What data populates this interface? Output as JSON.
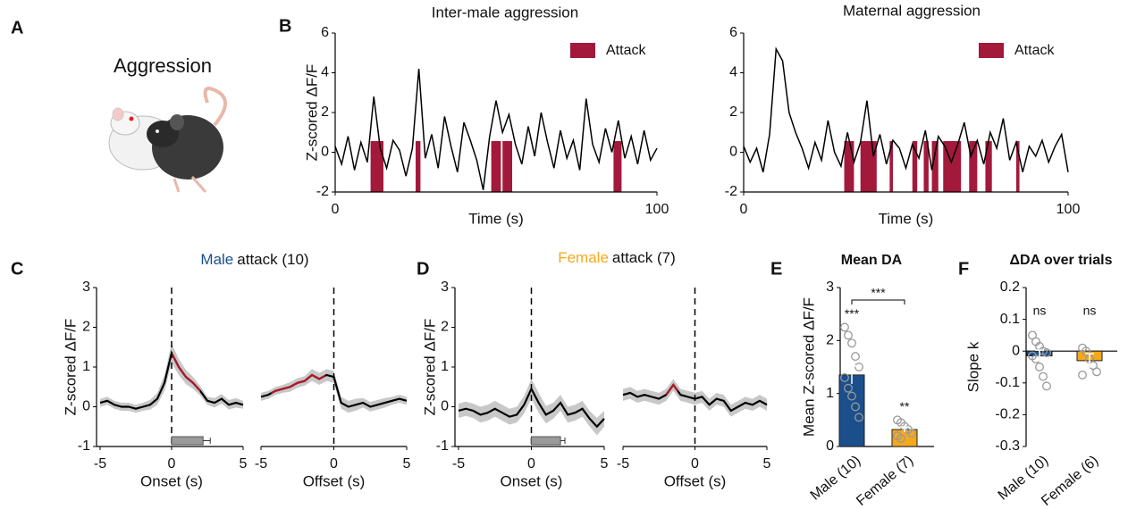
{
  "figure": {
    "panel_letters": [
      "A",
      "B",
      "C",
      "D",
      "E",
      "F"
    ],
    "illustration_label": "Aggression"
  },
  "chart_data": [
    {
      "type": "line",
      "title": "Inter-male aggression",
      "ylabel": "Z-scored ΔF/F",
      "xlabel": "Time (s)",
      "xlim": [
        0,
        100
      ],
      "xticks": [
        0,
        100
      ],
      "ylim": [
        -2,
        6
      ],
      "yticks": [
        -2,
        0,
        2,
        4,
        6
      ],
      "color": "#000000",
      "x": [
        0,
        2,
        4,
        6,
        8,
        10,
        12,
        14,
        16,
        18,
        20,
        22,
        24,
        26,
        28,
        30,
        32,
        34,
        36,
        38,
        40,
        42,
        44,
        46,
        48,
        50,
        52,
        54,
        56,
        58,
        60,
        62,
        64,
        66,
        68,
        70,
        72,
        74,
        76,
        78,
        80,
        82,
        84,
        86,
        88,
        90,
        92,
        94,
        96,
        98,
        100
      ],
      "values": [
        0.3,
        -0.6,
        0.8,
        -0.9,
        0.5,
        -0.5,
        2.8,
        0.2,
        -0.8,
        0.6,
        0.1,
        -1.2,
        0.2,
        4.2,
        -0.3,
        0.9,
        -0.8,
        1.8,
        0.3,
        -1.0,
        1.5,
        0.6,
        -0.4,
        -1.9,
        0.8,
        2.6,
        1.0,
        1.9,
        0.4,
        -0.6,
        1.3,
        -0.2,
        2.0,
        0.5,
        -0.8,
        1.1,
        -0.3,
        0.6,
        -0.9,
        2.7,
        0.4,
        -0.5,
        1.2,
        0.0,
        1.6,
        -0.3,
        0.8,
        -0.6,
        1.1,
        -0.4,
        0.2
      ],
      "attacks": {
        "name": "Attack",
        "color": "#a3193b",
        "intervals": [
          [
            11,
            15
          ],
          [
            25,
            26.5
          ],
          [
            48.5,
            51.5
          ],
          [
            52,
            55
          ],
          [
            86.5,
            89
          ]
        ]
      }
    },
    {
      "type": "line",
      "title": "Maternal aggression",
      "xlabel": "Time (s)",
      "xlim": [
        0,
        100
      ],
      "xticks": [
        0,
        100
      ],
      "ylim": [
        -2,
        6
      ],
      "yticks": [
        -2,
        0,
        2,
        4,
        6
      ],
      "color": "#000000",
      "x": [
        0,
        2,
        4,
        6,
        8,
        10,
        12,
        14,
        16,
        18,
        20,
        22,
        24,
        26,
        28,
        30,
        32,
        34,
        36,
        38,
        40,
        42,
        44,
        46,
        48,
        50,
        52,
        54,
        56,
        58,
        60,
        62,
        64,
        66,
        68,
        70,
        72,
        74,
        76,
        78,
        80,
        82,
        84,
        86,
        88,
        90,
        92,
        94,
        96,
        98,
        100
      ],
      "values": [
        0.3,
        -0.5,
        0.2,
        -1.0,
        0.9,
        5.2,
        4.6,
        2.0,
        1.0,
        0.2,
        -0.8,
        0.5,
        -0.4,
        1.6,
        0.0,
        -0.7,
        1.0,
        -0.5,
        0.5,
        2.6,
        -0.2,
        0.9,
        -0.6,
        0.6,
        0.2,
        -0.8,
        0.4,
        -0.3,
        1.1,
        -0.9,
        0.8,
        0.3,
        -0.5,
        0.4,
        1.5,
        -0.2,
        0.6,
        -0.6,
        1.0,
        0.2,
        1.7,
        -0.4,
        0.5,
        -1.0,
        0.3,
        -0.2,
        0.6,
        -0.5,
        0.3,
        0.9,
        -1.0
      ],
      "attacks": {
        "name": "Attack",
        "color": "#a3193b",
        "intervals": [
          [
            31,
            34
          ],
          [
            36,
            41
          ],
          [
            45,
            46
          ],
          [
            52,
            53.5
          ],
          [
            55.5,
            57
          ],
          [
            58,
            60
          ],
          [
            61.5,
            67
          ],
          [
            69.5,
            72
          ],
          [
            74.5,
            76.5
          ],
          [
            84,
            85
          ]
        ]
      }
    },
    {
      "type": "line",
      "title_parts": [
        {
          "text": "Male",
          "color": "#1a4f8c"
        },
        {
          "text": "attack (10)"
        }
      ],
      "ylabel": "Z-scored ΔF/F",
      "xlabel": "Onset (s)",
      "xlim": [
        -5,
        5
      ],
      "xticks": [
        -5,
        0,
        5
      ],
      "ylim": [
        -1,
        3
      ],
      "yticks": [
        -1,
        0,
        1,
        2,
        3
      ],
      "color": "#000000",
      "highlight_color": "#b0182a",
      "highlight": [
        0,
        2
      ],
      "x": [
        -5,
        -4.5,
        -4,
        -3.5,
        -3,
        -2.5,
        -2,
        -1.5,
        -1,
        -0.5,
        0,
        0.5,
        1,
        1.5,
        2,
        2.5,
        3,
        3.5,
        4,
        4.5,
        5
      ],
      "values": [
        0.1,
        0.15,
        0.05,
        0.0,
        0.0,
        -0.05,
        0.0,
        0.05,
        0.2,
        0.6,
        1.35,
        1.0,
        0.75,
        0.6,
        0.4,
        0.15,
        0.1,
        0.2,
        0.05,
        0.1,
        0.05
      ],
      "sem": [
        0.1,
        0.1,
        0.1,
        0.1,
        0.1,
        0.1,
        0.1,
        0.12,
        0.15,
        0.2,
        0.25,
        0.2,
        0.18,
        0.15,
        0.12,
        0.1,
        0.12,
        0.12,
        0.12,
        0.12,
        0.1
      ],
      "duration": {
        "value": 2.2,
        "error": 0.5
      }
    },
    {
      "type": "line",
      "xlabel": "Offset (s)",
      "xlim": [
        -5,
        5
      ],
      "xticks": [
        -5,
        0,
        5
      ],
      "ylim": [
        -1,
        3
      ],
      "color": "#000000",
      "highlight_color": "#b0182a",
      "highlight": [
        -4.3,
        -0.6
      ],
      "x": [
        -5,
        -4.5,
        -4,
        -3.5,
        -3,
        -2.5,
        -2,
        -1.5,
        -1,
        -0.5,
        0,
        0.5,
        1,
        1.5,
        2,
        2.5,
        3,
        3.5,
        4,
        4.5,
        5
      ],
      "values": [
        0.25,
        0.3,
        0.4,
        0.45,
        0.5,
        0.6,
        0.65,
        0.8,
        0.7,
        0.8,
        0.75,
        0.1,
        0.0,
        0.05,
        0.1,
        0.0,
        0.05,
        0.1,
        0.15,
        0.2,
        0.15
      ],
      "sem": [
        0.1,
        0.1,
        0.1,
        0.1,
        0.12,
        0.12,
        0.12,
        0.15,
        0.15,
        0.15,
        0.15,
        0.15,
        0.15,
        0.15,
        0.12,
        0.12,
        0.12,
        0.12,
        0.1,
        0.1,
        0.1
      ]
    },
    {
      "type": "line",
      "title_parts": [
        {
          "text": "Female",
          "color": "#f5a81c"
        },
        {
          "text": "attack (7)"
        }
      ],
      "ylabel": "Z-scored ΔF/F",
      "xlabel": "Onset (s)",
      "xlim": [
        -5,
        5
      ],
      "xticks": [
        -5,
        0,
        5
      ],
      "ylim": [
        -1,
        3
      ],
      "yticks": [
        -1,
        0,
        1,
        2,
        3
      ],
      "color": "#000000",
      "x": [
        -5,
        -4.5,
        -4,
        -3.5,
        -3,
        -2.5,
        -2,
        -1.5,
        -1,
        -0.5,
        0,
        0.5,
        1,
        1.5,
        2,
        2.5,
        3,
        3.5,
        4,
        4.5,
        5
      ],
      "values": [
        -0.1,
        -0.05,
        -0.1,
        -0.2,
        -0.15,
        -0.05,
        -0.15,
        -0.25,
        -0.2,
        0.05,
        0.45,
        0.1,
        -0.2,
        -0.1,
        0.1,
        -0.2,
        -0.15,
        -0.05,
        -0.3,
        -0.5,
        -0.3
      ],
      "sem": [
        0.18,
        0.18,
        0.18,
        0.2,
        0.2,
        0.2,
        0.2,
        0.2,
        0.2,
        0.22,
        0.25,
        0.25,
        0.22,
        0.2,
        0.2,
        0.2,
        0.2,
        0.2,
        0.2,
        0.22,
        0.2
      ],
      "duration": {
        "value": 2.0,
        "error": 0.3
      }
    },
    {
      "type": "line",
      "xlabel": "Offset (s)",
      "xlim": [
        -5,
        5
      ],
      "xticks": [
        -5,
        0,
        5
      ],
      "ylim": [
        -1,
        3
      ],
      "color": "#000000",
      "highlight_color": "#b0182a",
      "highlight": [
        -2,
        -1.2
      ],
      "x": [
        -5,
        -4.5,
        -4,
        -3.5,
        -3,
        -2.5,
        -2,
        -1.5,
        -1,
        -0.5,
        0,
        0.5,
        1,
        1.5,
        2,
        2.5,
        3,
        3.5,
        4,
        4.5,
        5
      ],
      "values": [
        0.3,
        0.35,
        0.25,
        0.3,
        0.25,
        0.2,
        0.3,
        0.55,
        0.3,
        0.25,
        0.2,
        0.25,
        0.05,
        0.2,
        0.15,
        -0.1,
        0.0,
        0.1,
        0.05,
        0.15,
        0.05
      ],
      "sem": [
        0.15,
        0.15,
        0.15,
        0.15,
        0.15,
        0.15,
        0.15,
        0.15,
        0.15,
        0.15,
        0.15,
        0.15,
        0.15,
        0.15,
        0.15,
        0.15,
        0.15,
        0.15,
        0.15,
        0.15,
        0.15
      ]
    },
    {
      "type": "bar",
      "title": "Mean DA",
      "ylabel": "Mean Z-scored ΔF/F",
      "categories": [
        "Male (10)",
        "Female (7)"
      ],
      "colors": [
        "#1a4f8c",
        "#f5a81c"
      ],
      "values": [
        1.35,
        0.32
      ],
      "errors": [
        0.17,
        0.05
      ],
      "points": [
        [
          2.25,
          2.1,
          1.95,
          1.7,
          1.5,
          1.3,
          1.1,
          0.95,
          0.75,
          0.55
        ],
        [
          0.5,
          0.45,
          0.38,
          0.32,
          0.25,
          0.2,
          0.15
        ]
      ],
      "annotations": [
        "***",
        "**"
      ],
      "bracket_label": "***",
      "ylim": [
        0,
        3
      ],
      "yticks": [
        0,
        1,
        2,
        3
      ]
    },
    {
      "type": "bar",
      "title": "ΔDA over trials",
      "ylabel": "Slope k",
      "categories": [
        "Male (10)",
        "Female (6)"
      ],
      "colors": [
        "#1a4f8c",
        "#f5a81c"
      ],
      "values": [
        -0.015,
        -0.03
      ],
      "errors": [
        0.018,
        0.022
      ],
      "points": [
        [
          0.05,
          0.03,
          0.015,
          0.0,
          -0.005,
          -0.015,
          -0.025,
          -0.05,
          -0.08,
          -0.11
        ],
        [
          0.01,
          0.0,
          -0.025,
          -0.045,
          -0.065,
          -0.075
        ]
      ],
      "annotations": [
        "ns",
        "ns"
      ],
      "ylim": [
        -0.3,
        0.2
      ],
      "yticks": [
        -0.3,
        -0.2,
        -0.1,
        0,
        0.1,
        0.2
      ]
    }
  ]
}
